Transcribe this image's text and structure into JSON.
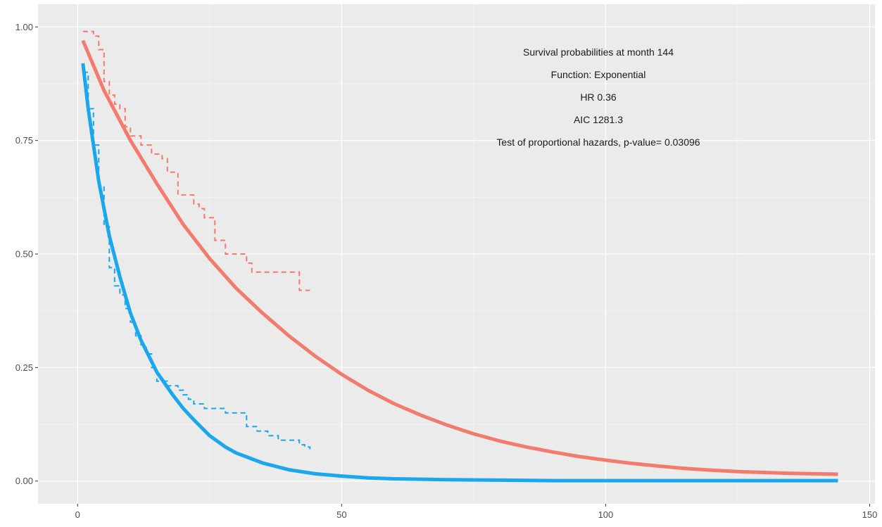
{
  "colors": {
    "panel_background": "#ebebeb",
    "grid_major": "#ffffff",
    "grid_minor": "#f5f5f5",
    "tick_text": "#4d4d4d",
    "tick_mark": "#333333",
    "series_red": "#f27b6e",
    "series_blue": "#1aa7ec"
  },
  "annotation": {
    "line1": "Survival probabilities at month 144",
    "line2": "Function: Exponential",
    "line3": "HR 0.36",
    "line4": "AIC 1281.3",
    "line5": "Test of proportional hazards, p-value= 0.03096"
  },
  "chart_data": {
    "type": "line",
    "title": "",
    "xlabel": "",
    "ylabel": "",
    "xlim": [
      -7.5,
      151
    ],
    "ylim": [
      -0.05,
      1.05
    ],
    "x_ticks": [
      {
        "value": 0,
        "label": "0"
      },
      {
        "value": 50,
        "label": "50"
      },
      {
        "value": 100,
        "label": "100"
      },
      {
        "value": 150,
        "label": "150"
      }
    ],
    "y_ticks": [
      {
        "value": 0,
        "label": "0.00"
      },
      {
        "value": 0.25,
        "label": "0.25"
      },
      {
        "value": 0.5,
        "label": "0.50"
      },
      {
        "value": 0.75,
        "label": "0.75"
      },
      {
        "value": 1.0,
        "label": "1.00"
      }
    ],
    "grid": true,
    "legend": "none",
    "series": [
      {
        "color_key": "series_red",
        "style": "solid",
        "x": [
          1,
          5,
          10,
          15,
          20,
          25,
          30,
          35,
          40,
          45,
          50,
          55,
          60,
          65,
          70,
          75,
          80,
          85,
          90,
          95,
          100,
          105,
          110,
          115,
          120,
          125,
          130,
          135,
          140,
          144
        ],
        "y": [
          0.97,
          0.86,
          0.75,
          0.655,
          0.565,
          0.49,
          0.425,
          0.37,
          0.32,
          0.275,
          0.235,
          0.2,
          0.17,
          0.145,
          0.123,
          0.104,
          0.088,
          0.075,
          0.064,
          0.054,
          0.046,
          0.039,
          0.033,
          0.028,
          0.024,
          0.021,
          0.019,
          0.017,
          0.016,
          0.015
        ]
      },
      {
        "color_key": "series_blue",
        "style": "solid",
        "x": [
          1,
          2,
          3,
          4,
          5,
          6,
          8,
          10,
          12,
          15,
          18,
          20,
          22,
          25,
          28,
          30,
          35,
          40,
          45,
          50,
          55,
          60,
          65,
          70,
          80,
          90,
          100,
          110,
          120,
          130,
          144
        ],
        "y": [
          0.92,
          0.82,
          0.74,
          0.66,
          0.6,
          0.54,
          0.45,
          0.37,
          0.31,
          0.24,
          0.19,
          0.16,
          0.135,
          0.1,
          0.075,
          0.062,
          0.04,
          0.025,
          0.016,
          0.011,
          0.007,
          0.005,
          0.004,
          0.003,
          0.002,
          0.001,
          0.001,
          0.001,
          0.001,
          0.001,
          0.001
        ]
      },
      {
        "color_key": "series_red",
        "style": "dashed-step",
        "x": [
          1,
          2,
          3,
          4,
          5,
          6,
          7,
          8,
          9,
          10,
          12,
          14,
          15,
          16,
          17,
          19,
          21,
          22,
          23,
          24,
          26,
          27,
          28,
          30,
          32,
          33,
          35,
          38,
          40,
          42,
          43,
          44
        ],
        "y": [
          0.99,
          0.99,
          0.98,
          0.95,
          0.88,
          0.85,
          0.83,
          0.82,
          0.78,
          0.76,
          0.74,
          0.72,
          0.72,
          0.71,
          0.68,
          0.63,
          0.63,
          0.61,
          0.6,
          0.58,
          0.53,
          0.53,
          0.5,
          0.5,
          0.48,
          0.46,
          0.46,
          0.46,
          0.46,
          0.42,
          0.42,
          0.42
        ]
      },
      {
        "color_key": "series_blue",
        "style": "dashed-step",
        "x": [
          1,
          2,
          3,
          4,
          5,
          6,
          7,
          8,
          9,
          10,
          11,
          12,
          13,
          14,
          15,
          16,
          17,
          18,
          19,
          20,
          21,
          22,
          24,
          26,
          28,
          30,
          32,
          34,
          36,
          38,
          40,
          42,
          43,
          44
        ],
        "y": [
          0.9,
          0.82,
          0.74,
          0.65,
          0.56,
          0.47,
          0.43,
          0.41,
          0.38,
          0.35,
          0.32,
          0.3,
          0.28,
          0.25,
          0.22,
          0.22,
          0.21,
          0.21,
          0.2,
          0.19,
          0.18,
          0.17,
          0.16,
          0.16,
          0.15,
          0.15,
          0.12,
          0.11,
          0.1,
          0.09,
          0.09,
          0.08,
          0.075,
          0.07
        ]
      }
    ]
  }
}
